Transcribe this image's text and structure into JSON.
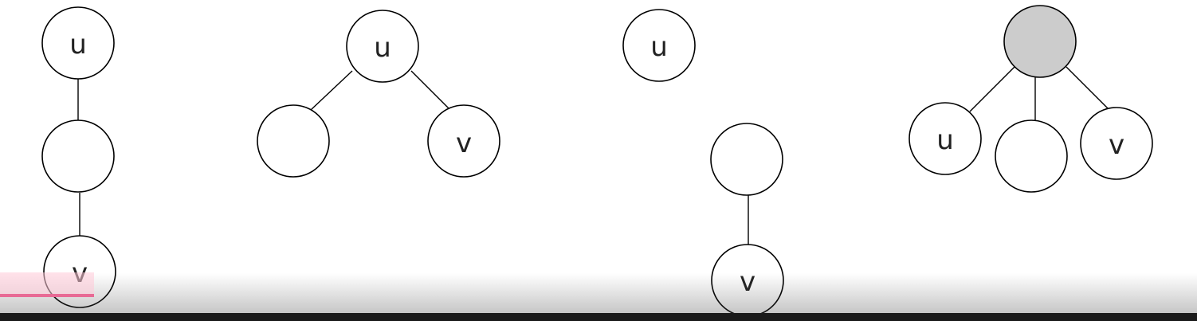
{
  "colors": {
    "node_fill": "#ffffff",
    "highlight_node_fill": "#cccccc",
    "stroke": "#000000",
    "progress": "#e86a95"
  },
  "diagram1": {
    "top": "u",
    "middle": "",
    "bottom": "v"
  },
  "diagram2": {
    "root": "u",
    "left": "",
    "right": "v"
  },
  "diagram3": {
    "isolated": "u",
    "upper": "",
    "lower": "v"
  },
  "diagram4": {
    "root": "",
    "left": "u",
    "middle": "",
    "right": "v"
  }
}
